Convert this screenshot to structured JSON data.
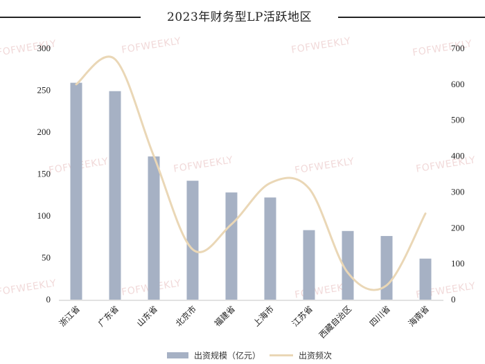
{
  "chart_data": {
    "type": "bar+line",
    "title": "2023年财务型LP活跃地区",
    "categories": [
      "浙江省",
      "广东省",
      "山东省",
      "北京市",
      "福建省",
      "上海市",
      "江苏省",
      "西藏自治区",
      "四川省",
      "海南省"
    ],
    "series": [
      {
        "name": "出资规模（亿元）",
        "type": "bar",
        "axis": "left",
        "color": "#a6b1c4",
        "values": [
          259,
          249,
          171,
          142,
          128,
          122,
          83,
          82,
          76,
          49
        ]
      },
      {
        "name": "出资频次",
        "type": "line",
        "axis": "right",
        "color": "#ead7b6",
        "smooth": true,
        "values": [
          600,
          670,
          400,
          140,
          210,
          325,
          310,
          75,
          40,
          240
        ]
      }
    ],
    "left_axis": {
      "min": 0,
      "max": 300,
      "ticks": [
        0,
        50,
        100,
        150,
        200,
        250,
        300
      ]
    },
    "right_axis": {
      "min": 0,
      "max": 700,
      "ticks": [
        0,
        100,
        200,
        300,
        400,
        500,
        600,
        700
      ]
    },
    "xlabel": "",
    "ylabel": "",
    "grid": false,
    "legend_position": "bottom"
  },
  "header": {
    "title": "2023年财务型LP活跃地区"
  },
  "legend": {
    "bar_label": "出资规模（亿元）",
    "line_label": "出资频次"
  },
  "watermark": {
    "text": "FOFWEEKLY"
  }
}
